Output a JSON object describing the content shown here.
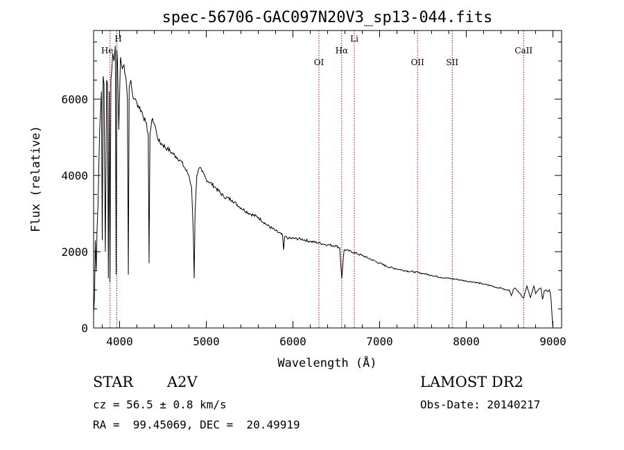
{
  "chart_data": {
    "type": "line",
    "title": "spec-56706-GAC097N20V3_sp13-044.fits",
    "xlabel": "Wavelength (Å)",
    "ylabel": "Flux (relative)",
    "xlim": [
      3700,
      9100
    ],
    "ylim": [
      0,
      7800
    ],
    "x_ticks": [
      4000,
      5000,
      6000,
      7000,
      8000,
      9000
    ],
    "y_ticks": [
      0,
      2000,
      4000,
      6000
    ],
    "series": [
      {
        "name": "flux",
        "x": [
          3700,
          3710,
          3720,
          3730,
          3740,
          3750,
          3770,
          3790,
          3800,
          3810,
          3820,
          3835,
          3850,
          3860,
          3870,
          3880,
          3889,
          3900,
          3920,
          3935,
          3950,
          3960,
          3968,
          3975,
          3990,
          4010,
          4030,
          4050,
          4070,
          4090,
          4101,
          4110,
          4130,
          4150,
          4170,
          4200,
          4250,
          4300,
          4330,
          4340,
          4350,
          4380,
          4420,
          4450,
          4500,
          4550,
          4600,
          4650,
          4700,
          4750,
          4800,
          4830,
          4850,
          4861,
          4870,
          4890,
          4920,
          4950,
          5000,
          5100,
          5200,
          5300,
          5400,
          5500,
          5600,
          5700,
          5800,
          5880,
          5893,
          5905,
          5950,
          6000,
          6100,
          6200,
          6300,
          6400,
          6500,
          6540,
          6563,
          6590,
          6650,
          6700,
          6800,
          6900,
          7000,
          7100,
          7200,
          7300,
          7400,
          7500,
          7600,
          7700,
          7800,
          7900,
          8000,
          8100,
          8200,
          8300,
          8350,
          8400,
          8450,
          8500,
          8520,
          8542,
          8560,
          8600,
          8662,
          8680,
          8700,
          8740,
          8780,
          8800,
          8830,
          8860,
          8880,
          8900,
          8920,
          8940,
          8960,
          8970,
          8980,
          8990,
          9000
        ],
        "y": [
          400,
          800,
          2300,
          1500,
          2600,
          3200,
          5200,
          6200,
          2300,
          6600,
          6400,
          2000,
          6500,
          6400,
          1300,
          6200,
          1200,
          6500,
          7200,
          7000,
          7400,
          1400,
          7300,
          7000,
          5200,
          7100,
          6800,
          6900,
          6600,
          6000,
          1400,
          6300,
          6500,
          6100,
          6000,
          5900,
          5700,
          5400,
          5100,
          1700,
          5100,
          5500,
          5200,
          4900,
          4800,
          4700,
          4600,
          4500,
          4400,
          4200,
          4000,
          3700,
          2500,
          1300,
          3000,
          4000,
          4200,
          4100,
          3900,
          3700,
          3450,
          3350,
          3150,
          3000,
          2900,
          2700,
          2550,
          2430,
          2050,
          2400,
          2350,
          2350,
          2330,
          2270,
          2230,
          2180,
          2150,
          2100,
          1300,
          2050,
          2020,
          1980,
          1900,
          1800,
          1700,
          1600,
          1550,
          1500,
          1470,
          1430,
          1380,
          1330,
          1300,
          1270,
          1230,
          1200,
          1150,
          1100,
          1060,
          1050,
          1000,
          990,
          850,
          1000,
          1050,
          960,
          780,
          950,
          1100,
          800,
          1100,
          900,
          1000,
          1050,
          750,
          980,
          1000,
          950,
          1000,
          900,
          700,
          300,
          0
        ]
      }
    ],
    "line_markers": [
      {
        "label": "He",
        "x": 3889
      },
      {
        "label": "H",
        "x": 3968
      },
      {
        "label": "OI",
        "x": 6300
      },
      {
        "label": "Hα",
        "x": 6563
      },
      {
        "label": "Li",
        "x": 6708
      },
      {
        "label": "OII",
        "x": 7438
      },
      {
        "label": "SII",
        "x": 7838
      },
      {
        "label": "CaII",
        "x": 8662
      }
    ]
  },
  "info": {
    "type_label": "STAR",
    "subclass": "A2V",
    "cz": "cz = 56.5 ± 0.8 km/s",
    "coords": "RA =  99.45069, DEC =  20.49919",
    "survey": "LAMOST DR2",
    "obs_date": "Obs-Date: 20140217"
  },
  "colors": {
    "marker": "#aa0000",
    "line": "#000000",
    "background": "#ffffff"
  }
}
